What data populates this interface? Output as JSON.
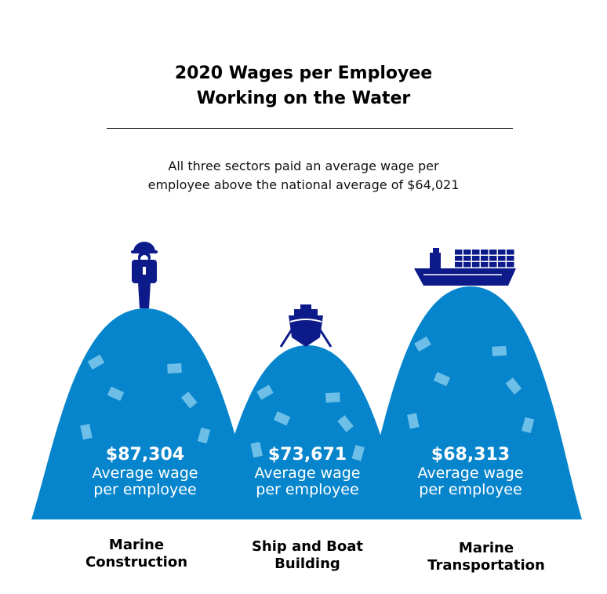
{
  "title": [
    "2020 Wages per Employee",
    "Working on the Water"
  ],
  "subtitle": [
    "All three sectors paid an average wage per",
    "employee above the national average of $64,021"
  ],
  "colors": {
    "mound": "#0785cc",
    "icon": "#0d1b8a",
    "note": "#6dbfe8"
  },
  "chart_data": {
    "type": "bar",
    "title": "2020 Wages per Employee Working on the Water",
    "categories": [
      "Marine Construction",
      "Ship and Boat Building",
      "Marine Transportation"
    ],
    "values": [
      87304,
      73671,
      68313
    ],
    "value_labels": [
      "$87,304",
      "$73,671",
      "$68,313"
    ],
    "value_caption": [
      "Average wage",
      "per employee"
    ],
    "category_lines": [
      [
        "Marine",
        "Construction"
      ],
      [
        "Ship and Boat",
        "Building"
      ],
      [
        "Marine",
        "Transportation"
      ]
    ],
    "icons": [
      "construction-worker-icon",
      "ship-bow-icon",
      "container-ship-icon"
    ],
    "reference": {
      "label": "national average",
      "value": 64021
    }
  }
}
